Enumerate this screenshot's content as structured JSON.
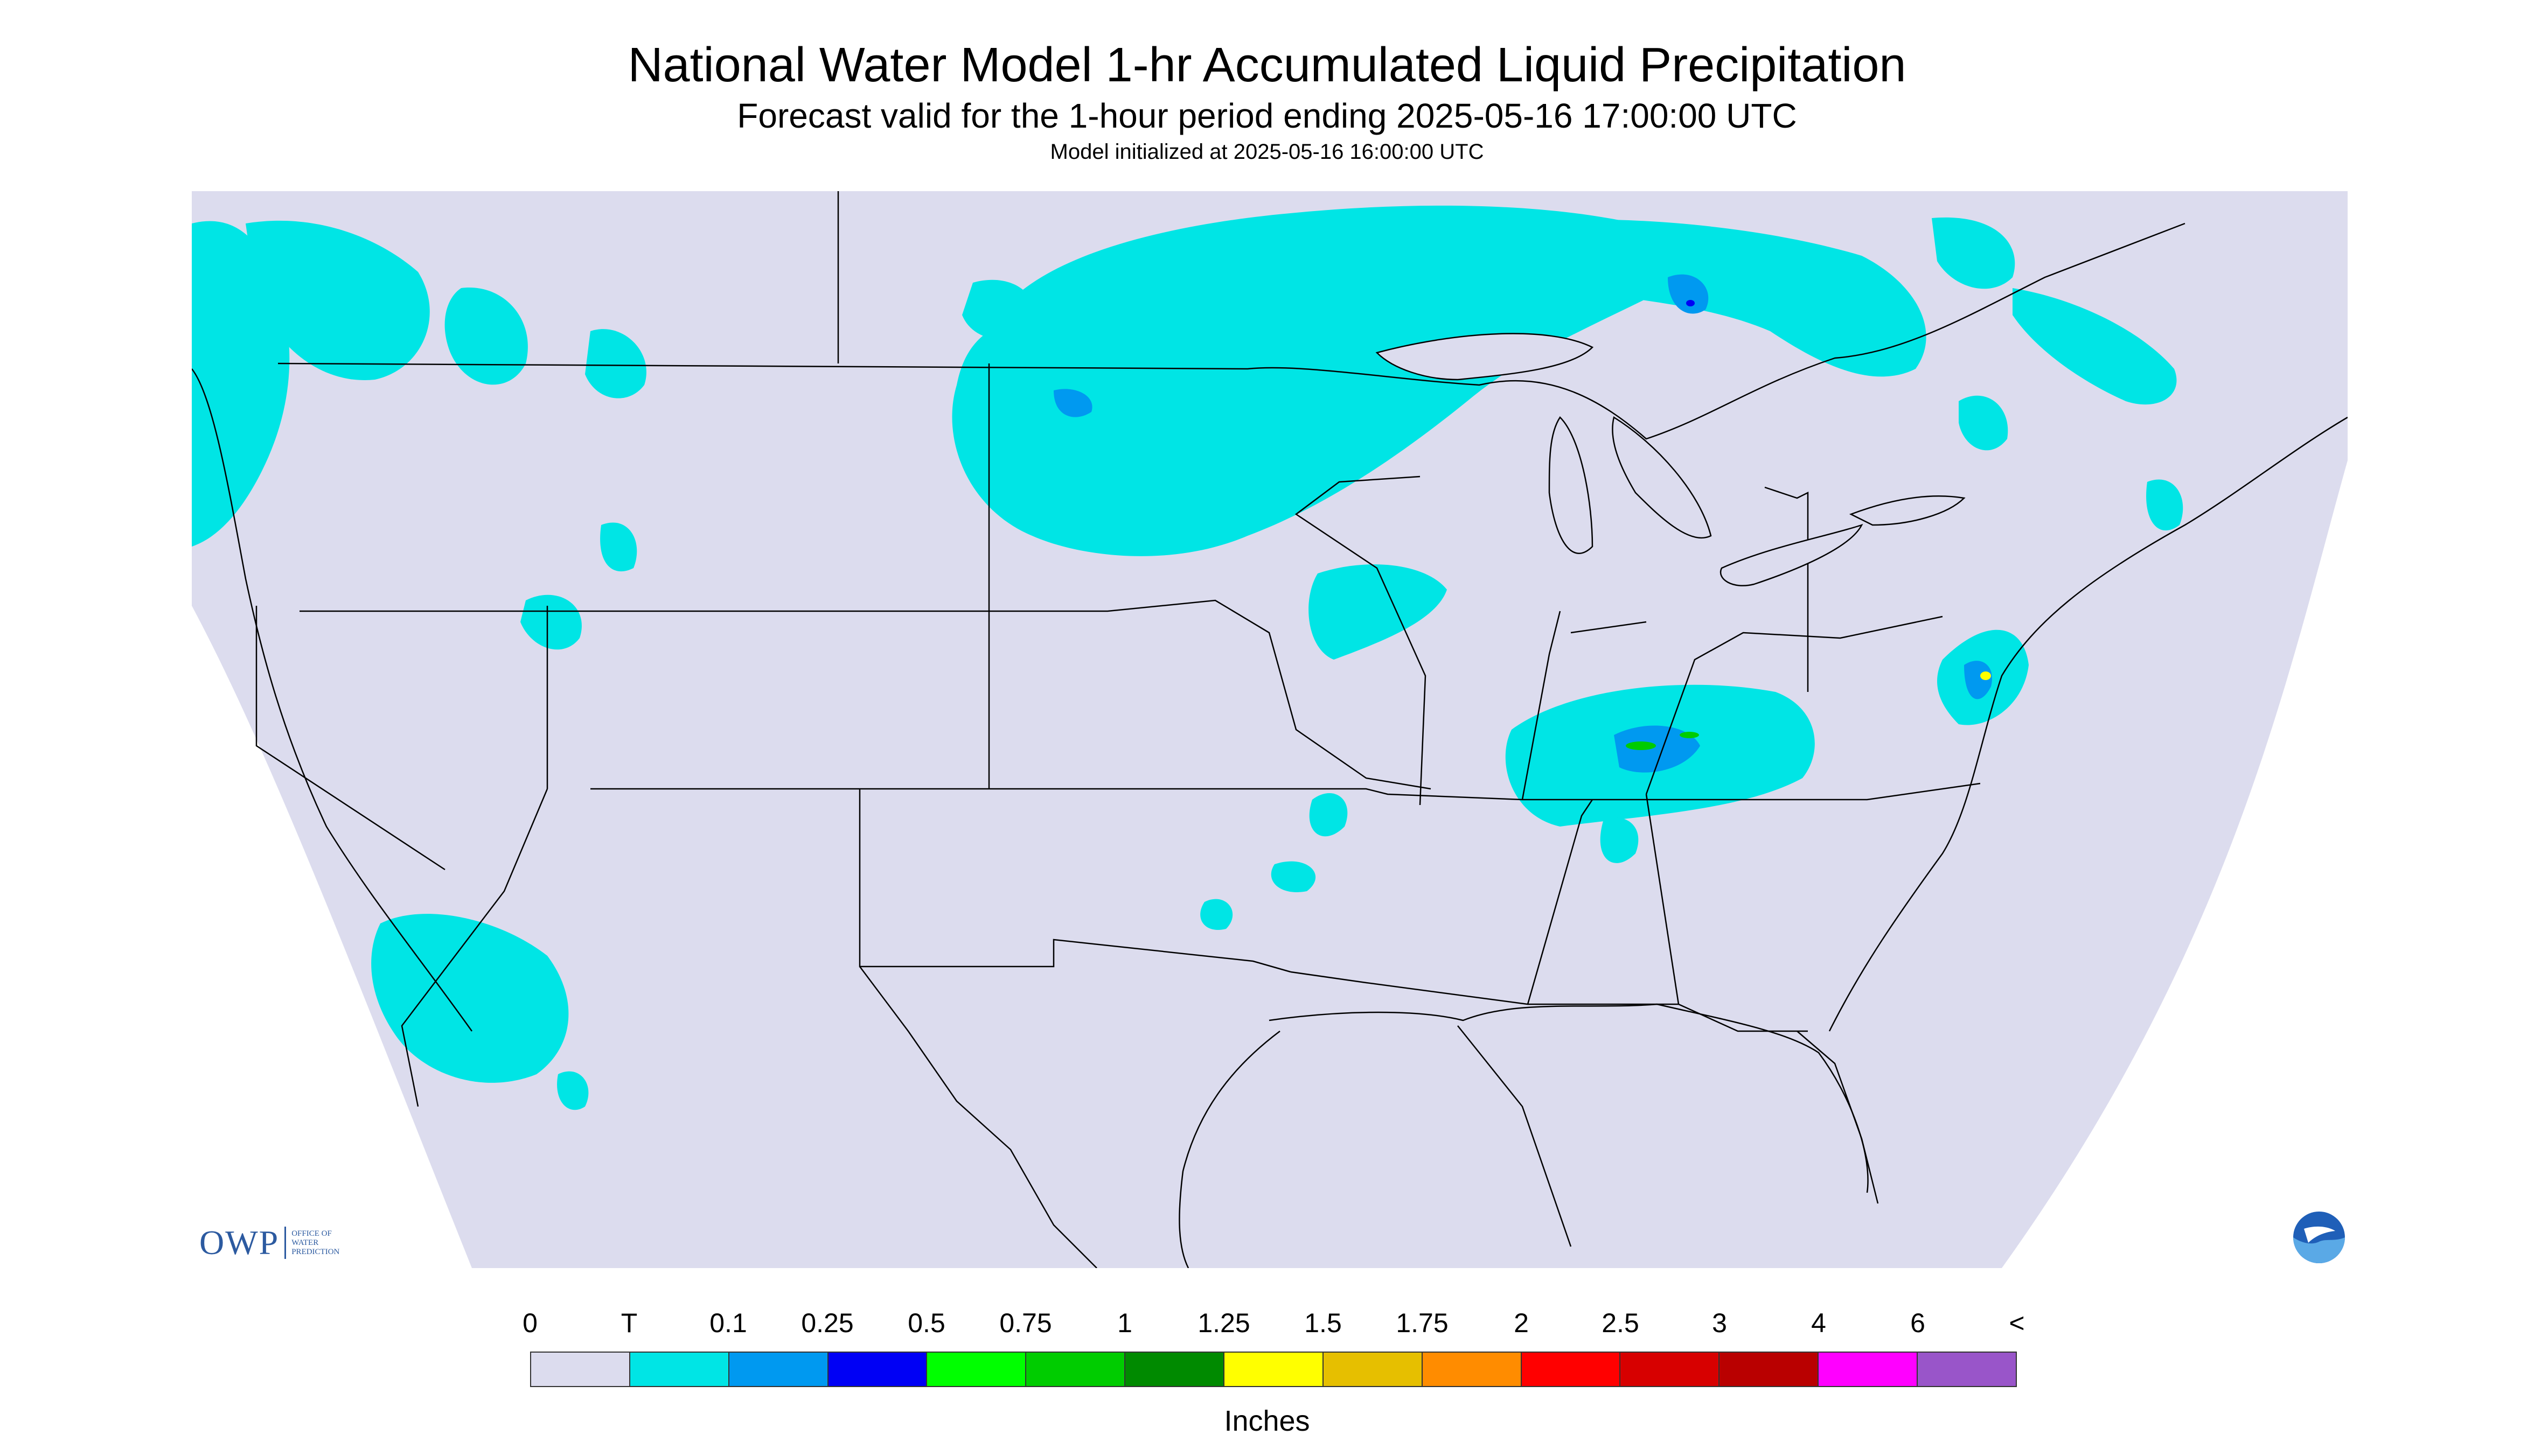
{
  "header": {
    "title": "National Water Model 1-hr Accumulated Liquid Precipitation",
    "subtitle": "Forecast valid for the 1-hour period ending 2025-05-16 17:00:00 UTC",
    "init": "Model initialized at 2025-05-16 16:00:00 UTC"
  },
  "legend": {
    "ticks": [
      "0",
      "T",
      "0.1",
      "0.25",
      "0.5",
      "0.75",
      "1",
      "1.25",
      "1.5",
      "1.75",
      "2",
      "2.5",
      "3",
      "4",
      "6",
      "<"
    ],
    "colors": [
      "#dcdcee",
      "#00e5e5",
      "#0099f0",
      "#0000f5",
      "#00ff00",
      "#00cc00",
      "#008a00",
      "#ffff00",
      "#e6bf00",
      "#ff8c00",
      "#ff0000",
      "#d70000",
      "#b90000",
      "#ff00ff",
      "#9955c9"
    ],
    "units": "Inches"
  },
  "logos": {
    "owp_main": "OWP",
    "owp_sub": "OFFICE OF\nWATER\nPREDICTION",
    "noaa": "NOAA"
  },
  "map": {
    "domain_color": "#dcdcee",
    "outside_color": "#ffffff",
    "boundary_color": "#000000",
    "light_precip_color": "#00e5e5"
  }
}
